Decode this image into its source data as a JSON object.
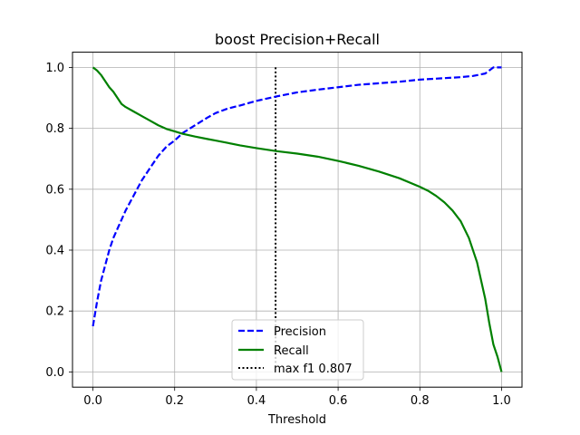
{
  "chart_data": {
    "type": "line",
    "title": "boost Precision+Recall",
    "xlabel": "Threshold",
    "ylabel": "",
    "xlim": [
      -0.05,
      1.05
    ],
    "ylim": [
      -0.05,
      1.05
    ],
    "xticks": [
      0.0,
      0.2,
      0.4,
      0.6,
      0.8,
      1.0
    ],
    "yticks": [
      0.0,
      0.2,
      0.4,
      0.6,
      0.8,
      1.0
    ],
    "xtick_labels": [
      "0.0",
      "0.2",
      "0.4",
      "0.6",
      "0.8",
      "1.0"
    ],
    "ytick_labels": [
      "0.0",
      "0.2",
      "0.4",
      "0.6",
      "0.8",
      "1.0"
    ],
    "grid": true,
    "legend_position": "bottom-center",
    "series": [
      {
        "name": "Precision",
        "color": "#0000ff",
        "style": "dashed",
        "x": [
          0.0,
          0.01,
          0.02,
          0.03,
          0.04,
          0.05,
          0.06,
          0.07,
          0.08,
          0.1,
          0.12,
          0.14,
          0.16,
          0.18,
          0.2,
          0.22,
          0.25,
          0.28,
          0.3,
          0.33,
          0.36,
          0.4,
          0.45,
          0.5,
          0.55,
          0.6,
          0.65,
          0.7,
          0.75,
          0.8,
          0.85,
          0.9,
          0.93,
          0.96,
          0.97,
          0.98,
          0.99,
          1.0
        ],
        "y": [
          0.15,
          0.23,
          0.3,
          0.35,
          0.4,
          0.44,
          0.47,
          0.5,
          0.53,
          0.58,
          0.63,
          0.67,
          0.71,
          0.74,
          0.76,
          0.785,
          0.81,
          0.835,
          0.85,
          0.865,
          0.875,
          0.89,
          0.905,
          0.918,
          0.927,
          0.935,
          0.943,
          0.948,
          0.953,
          0.96,
          0.964,
          0.968,
          0.972,
          0.98,
          0.99,
          1.0,
          1.0,
          1.0
        ]
      },
      {
        "name": "Recall",
        "color": "#008000",
        "style": "solid",
        "x": [
          0.0,
          0.01,
          0.02,
          0.03,
          0.04,
          0.05,
          0.06,
          0.07,
          0.08,
          0.1,
          0.12,
          0.14,
          0.16,
          0.18,
          0.2,
          0.22,
          0.25,
          0.28,
          0.3,
          0.33,
          0.36,
          0.4,
          0.45,
          0.5,
          0.55,
          0.6,
          0.65,
          0.7,
          0.75,
          0.8,
          0.82,
          0.84,
          0.86,
          0.88,
          0.9,
          0.92,
          0.94,
          0.96,
          0.97,
          0.98,
          0.99,
          1.0
        ],
        "y": [
          1.0,
          0.99,
          0.975,
          0.955,
          0.935,
          0.92,
          0.9,
          0.88,
          0.87,
          0.855,
          0.84,
          0.825,
          0.81,
          0.798,
          0.79,
          0.782,
          0.773,
          0.765,
          0.76,
          0.752,
          0.744,
          0.735,
          0.725,
          0.717,
          0.707,
          0.693,
          0.677,
          0.658,
          0.636,
          0.608,
          0.595,
          0.578,
          0.557,
          0.53,
          0.495,
          0.44,
          0.36,
          0.24,
          0.16,
          0.09,
          0.05,
          0.0
        ]
      }
    ],
    "vline": {
      "name": "max f1 0.807",
      "x": 0.447,
      "y_range": [
        0.0,
        1.0
      ],
      "color": "#000000",
      "style": "dotted"
    },
    "legend": [
      {
        "label": "Precision",
        "color": "#0000ff",
        "style": "dashed"
      },
      {
        "label": "Recall",
        "color": "#008000",
        "style": "solid"
      },
      {
        "label": "max f1 0.807",
        "color": "#000000",
        "style": "dotted"
      }
    ]
  }
}
